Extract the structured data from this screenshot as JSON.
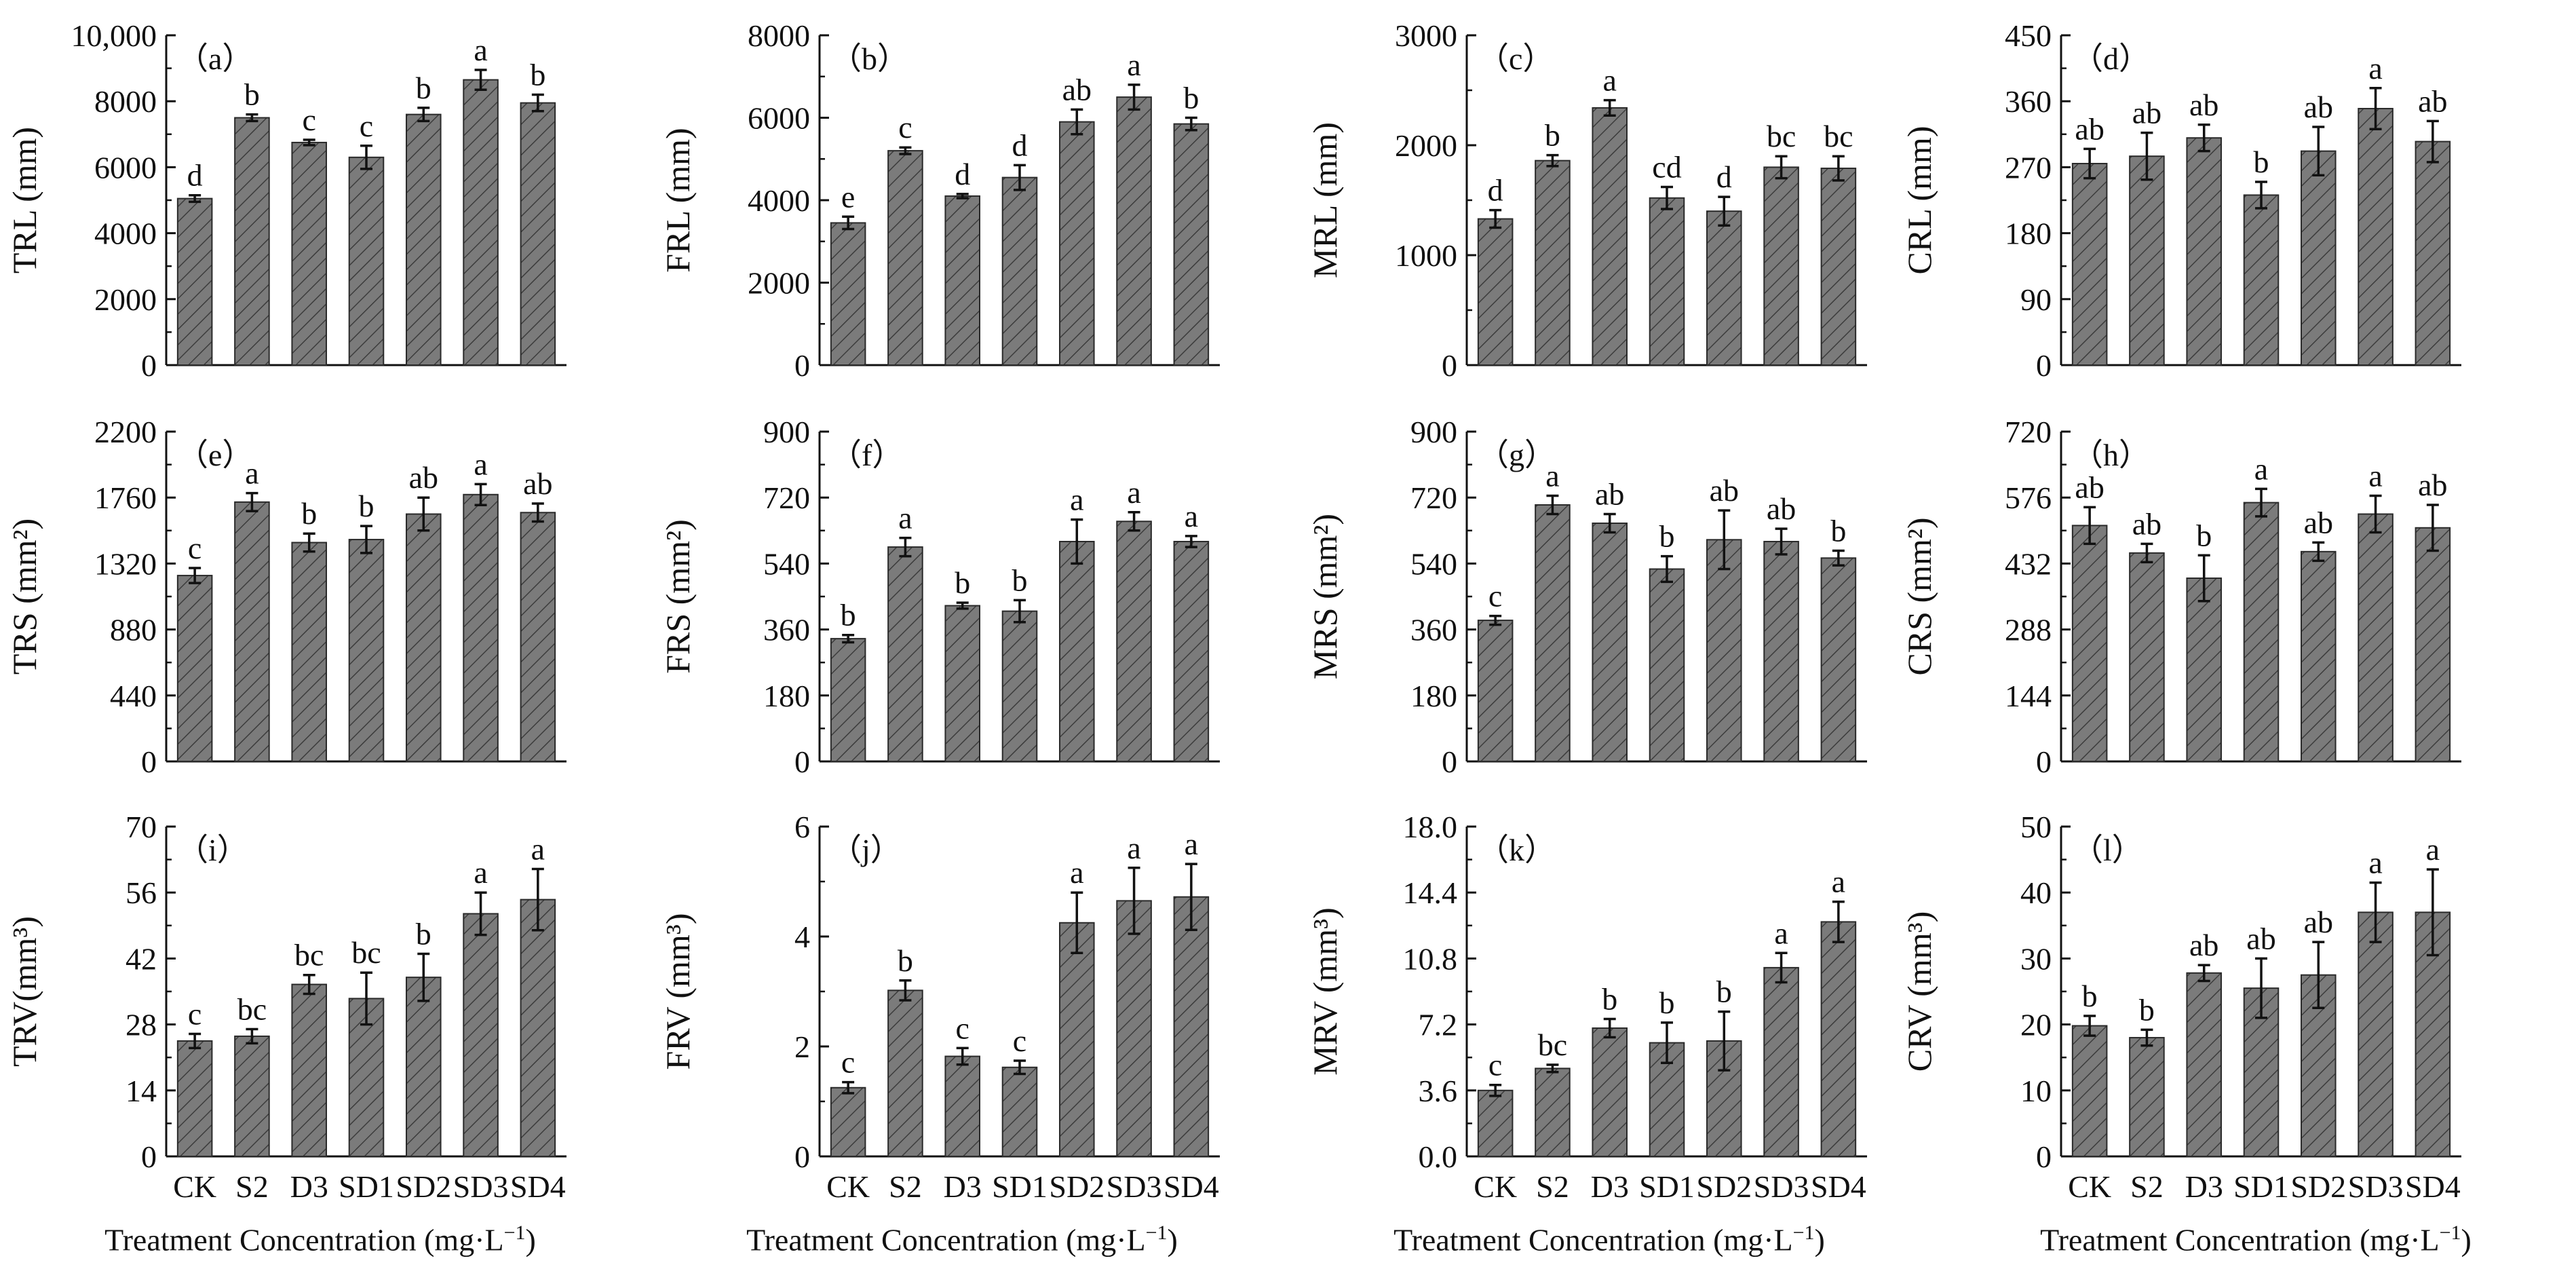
{
  "figure": {
    "x_axis_title": "Treatment Concentration (mg·L",
    "x_axis_title_sup": "−1",
    "x_axis_title_end": ")",
    "bar_color": "#7b7b7b",
    "bar_edge_color": "#2a2a2a"
  },
  "chart_data": [
    {
      "type": "bar",
      "panel_label": "（a）",
      "ylabel": "TRL (mm)",
      "yticks": [
        "0",
        "2000",
        "4000",
        "6000",
        "8000",
        "10,000"
      ],
      "ylim": [
        0,
        10000
      ],
      "categories": [
        "CK",
        "S2",
        "D3",
        "SD1",
        "SD2",
        "SD3",
        "SD4"
      ],
      "values": [
        5050,
        7500,
        6750,
        6300,
        7600,
        8650,
        7950
      ],
      "errors": [
        100,
        100,
        80,
        350,
        200,
        300,
        250
      ],
      "letters": [
        "d",
        "b",
        "c",
        "c",
        "b",
        "a",
        "b"
      ]
    },
    {
      "type": "bar",
      "panel_label": "（b）",
      "ylabel": "FRL (mm)",
      "yticks": [
        "0",
        "2000",
        "4000",
        "6000",
        "8000"
      ],
      "ylim": [
        0,
        8000
      ],
      "categories": [
        "CK",
        "S2",
        "D3",
        "SD1",
        "SD2",
        "SD3",
        "SD4"
      ],
      "values": [
        3450,
        5200,
        4100,
        4550,
        5900,
        6500,
        5850
      ],
      "errors": [
        150,
        80,
        50,
        300,
        300,
        300,
        150
      ],
      "letters": [
        "e",
        "c",
        "d",
        "d",
        "ab",
        "a",
        "b"
      ]
    },
    {
      "type": "bar",
      "panel_label": "（c）",
      "ylabel": "MRL (mm)",
      "yticks": [
        "0",
        "1000",
        "2000",
        "3000"
      ],
      "ylim": [
        0,
        3000
      ],
      "categories": [
        "CK",
        "S2",
        "D3",
        "SD1",
        "SD2",
        "SD3",
        "SD4"
      ],
      "values": [
        1330,
        1860,
        2340,
        1520,
        1400,
        1800,
        1790
      ],
      "errors": [
        80,
        50,
        70,
        100,
        130,
        100,
        110
      ],
      "letters": [
        "d",
        "b",
        "a",
        "cd",
        "d",
        "bc",
        "bc"
      ]
    },
    {
      "type": "bar",
      "panel_label": "（d）",
      "ylabel": "CRL (mm)",
      "yticks": [
        "0",
        "90",
        "180",
        "270",
        "360",
        "450"
      ],
      "ylim": [
        0,
        450
      ],
      "categories": [
        "CK",
        "S2",
        "D3",
        "SD1",
        "SD2",
        "SD3",
        "SD4"
      ],
      "values": [
        275,
        285,
        310,
        232,
        292,
        350,
        305
      ],
      "errors": [
        20,
        32,
        18,
        18,
        33,
        28,
        28
      ],
      "letters": [
        "ab",
        "ab",
        "ab",
        "b",
        "ab",
        "a",
        "ab"
      ]
    },
    {
      "type": "bar",
      "panel_label": "（e）",
      "ylabel": "TRS (mm²)",
      "yticks": [
        "0",
        "440",
        "880",
        "1320",
        "1760",
        "2200"
      ],
      "ylim": [
        0,
        2200
      ],
      "categories": [
        "CK",
        "S2",
        "D3",
        "SD1",
        "SD2",
        "SD3",
        "SD4"
      ],
      "values": [
        1240,
        1730,
        1460,
        1480,
        1650,
        1780,
        1660
      ],
      "errors": [
        50,
        60,
        60,
        90,
        110,
        70,
        60
      ],
      "letters": [
        "c",
        "a",
        "b",
        "b",
        "ab",
        "a",
        "ab"
      ]
    },
    {
      "type": "bar",
      "panel_label": "（f）",
      "ylabel": "FRS (mm²)",
      "yticks": [
        "0",
        "180",
        "360",
        "540",
        "720",
        "900"
      ],
      "ylim": [
        0,
        900
      ],
      "categories": [
        "CK",
        "S2",
        "D3",
        "SD1",
        "SD2",
        "SD3",
        "SD4"
      ],
      "values": [
        335,
        585,
        425,
        410,
        600,
        655,
        600
      ],
      "errors": [
        10,
        25,
        8,
        30,
        60,
        25,
        15
      ],
      "letters": [
        "b",
        "a",
        "b",
        "b",
        "a",
        "a",
        "a"
      ]
    },
    {
      "type": "bar",
      "panel_label": "（g）",
      "ylabel": "MRS (mm²)",
      "yticks": [
        "0",
        "180",
        "360",
        "540",
        "720",
        "900"
      ],
      "ylim": [
        0,
        900
      ],
      "categories": [
        "CK",
        "S2",
        "D3",
        "SD1",
        "SD2",
        "SD3",
        "SD4"
      ],
      "values": [
        385,
        700,
        650,
        525,
        605,
        600,
        555
      ],
      "errors": [
        12,
        25,
        25,
        35,
        80,
        35,
        20
      ],
      "letters": [
        "c",
        "a",
        "ab",
        "b",
        "ab",
        "ab",
        "b"
      ]
    },
    {
      "type": "bar",
      "panel_label": "（h）",
      "ylabel": "CRS (mm²)",
      "yticks": [
        "0",
        "144",
        "288",
        "432",
        "576",
        "720"
      ],
      "ylim": [
        0,
        720
      ],
      "categories": [
        "CK",
        "S2",
        "D3",
        "SD1",
        "SD2",
        "SD3",
        "SD4"
      ],
      "values": [
        515,
        455,
        400,
        565,
        458,
        540,
        510
      ],
      "errors": [
        40,
        20,
        50,
        30,
        20,
        40,
        50
      ],
      "letters": [
        "ab",
        "ab",
        "b",
        "a",
        "ab",
        "a",
        "ab"
      ]
    },
    {
      "type": "bar",
      "panel_label": "（i）",
      "ylabel": "TRV(mm³)",
      "yticks": [
        "0",
        "14",
        "28",
        "42",
        "56",
        "70"
      ],
      "ylim": [
        0,
        70
      ],
      "categories": [
        "CK",
        "S2",
        "D3",
        "SD1",
        "SD2",
        "SD3",
        "SD4"
      ],
      "values": [
        24.5,
        25.5,
        36.5,
        33.5,
        38,
        51.5,
        54.5
      ],
      "errors": [
        1.5,
        1.5,
        2,
        5.5,
        5,
        4.5,
        6.5
      ],
      "letters": [
        "c",
        "bc",
        "bc",
        "bc",
        "b",
        "a",
        "a"
      ]
    },
    {
      "type": "bar",
      "panel_label": "（j）",
      "ylabel": "FRV (mm³)",
      "yticks": [
        "0",
        "2",
        "4",
        "6"
      ],
      "ylim": [
        0,
        6
      ],
      "categories": [
        "CK",
        "S2",
        "D3",
        "SD1",
        "SD2",
        "SD3",
        "SD4"
      ],
      "values": [
        1.25,
        3.02,
        1.82,
        1.62,
        4.25,
        4.65,
        4.72
      ],
      "errors": [
        0.1,
        0.18,
        0.15,
        0.12,
        0.55,
        0.6,
        0.6
      ],
      "letters": [
        "c",
        "b",
        "c",
        "c",
        "a",
        "a",
        "a"
      ]
    },
    {
      "type": "bar",
      "panel_label": "（k）",
      "ylabel": "MRV (mm³)",
      "yticks": [
        "0.0",
        "3.6",
        "7.2",
        "10.8",
        "14.4",
        "18.0"
      ],
      "ylim": [
        0,
        18
      ],
      "categories": [
        "CK",
        "S2",
        "D3",
        "SD1",
        "SD2",
        "SD3",
        "SD4"
      ],
      "values": [
        3.6,
        4.8,
        7.0,
        6.2,
        6.3,
        10.3,
        12.8
      ],
      "errors": [
        0.3,
        0.2,
        0.5,
        1.1,
        1.6,
        0.8,
        1.1
      ],
      "letters": [
        "c",
        "bc",
        "b",
        "b",
        "b",
        "a",
        "a"
      ]
    },
    {
      "type": "bar",
      "panel_label": "（l）",
      "ylabel": "CRV (mm³)",
      "yticks": [
        "0",
        "10",
        "20",
        "30",
        "40",
        "50"
      ],
      "ylim": [
        0,
        50
      ],
      "categories": [
        "CK",
        "S2",
        "D3",
        "SD1",
        "SD2",
        "SD3",
        "SD4"
      ],
      "values": [
        19.8,
        18,
        27.8,
        25.5,
        27.5,
        37,
        37
      ],
      "errors": [
        1.5,
        1.2,
        1.2,
        4.5,
        5,
        4.5,
        6.5
      ],
      "letters": [
        "b",
        "b",
        "ab",
        "ab",
        "ab",
        "a",
        "a"
      ]
    }
  ]
}
